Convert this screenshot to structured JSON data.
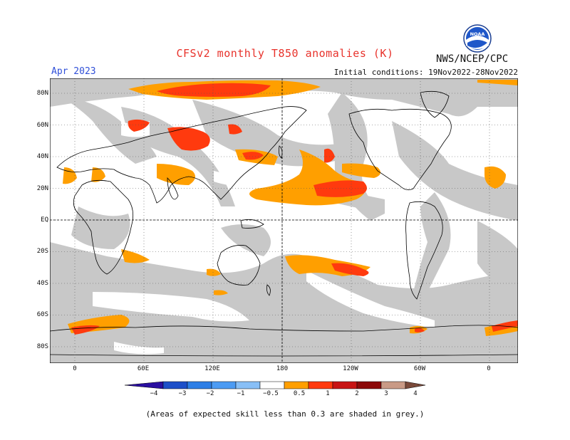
{
  "header": {
    "title": "CFSv2 monthly T850 anomalies (K)",
    "agency": "NWS/NCEP/CPC",
    "month": "Apr 2023",
    "initial_conditions": "Initial conditions: 19Nov2022-28Nov2022",
    "logo_text": "NOAA"
  },
  "map": {
    "y_ticks": [
      "80N",
      "60N",
      "40N",
      "20N",
      "EQ",
      "20S",
      "40S",
      "60S",
      "80S"
    ],
    "x_ticks": [
      "0",
      "60E",
      "120E",
      "180",
      "120W",
      "60W",
      "0"
    ],
    "colors": {
      "skill_grey": "#c8c8c8",
      "ocean_white": "#ffffff",
      "anom_0p5_1": "#ff9f00",
      "anom_1_2": "#ff3a0e",
      "coast": "#000000"
    }
  },
  "colorbar": {
    "labels": [
      "−4",
      "−3",
      "−2",
      "−1",
      "−0.5",
      "0.5",
      "1",
      "2",
      "3",
      "4"
    ],
    "colors": [
      "#2a0fa0",
      "#1d4fc8",
      "#2e7fe6",
      "#4c9bf3",
      "#88bff6",
      "#ffffff",
      "#ff9f00",
      "#ff3a0e",
      "#c81414",
      "#8c0a0a",
      "#c99a86",
      "#7a4a3a"
    ]
  },
  "footnote": "(Areas of expected skill less than 0.3 are shaded in grey.)"
}
